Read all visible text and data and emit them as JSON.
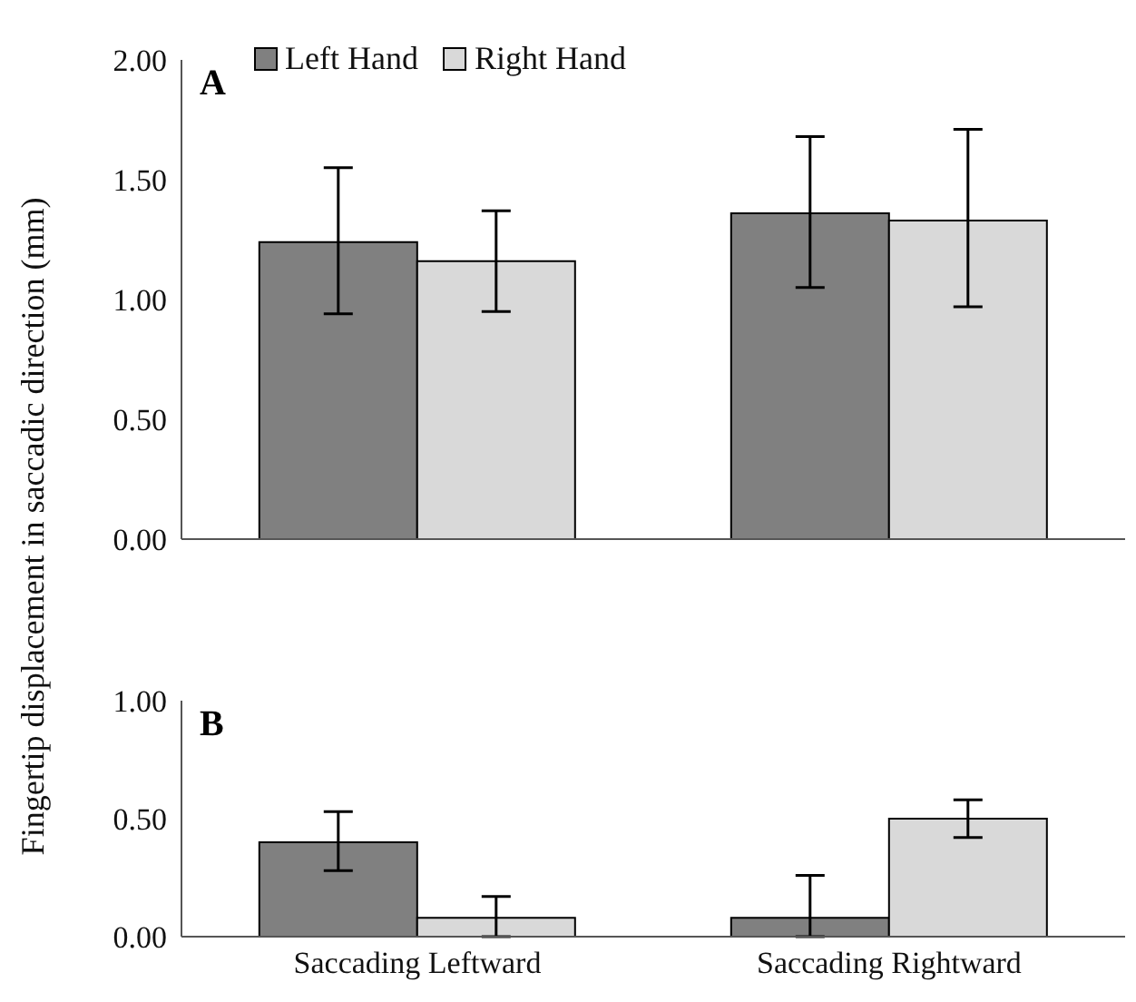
{
  "chart_data": [
    {
      "type": "bar",
      "ylabel": "Fingertip displacement in saccadic direction (mm)",
      "annotations": [
        "A"
      ],
      "categories": [
        null,
        null
      ],
      "tick_labels": "y",
      "legend": "top left",
      "grid": false,
      "series": [
        {
          "name": "Left Hand",
          "color": "#808080",
          "values": [
            1.24,
            1.36
          ],
          "errors": [
            [
              0.94,
              1.55
            ],
            [
              1.05,
              1.68
            ]
          ]
        },
        {
          "name": "Right Hand",
          "color": "#d9d9d9",
          "values": [
            1.16,
            1.33
          ],
          "errors": [
            [
              0.95,
              1.37
            ],
            [
              0.97,
              1.71
            ]
          ]
        }
      ],
      "ylim": [
        0,
        2
      ],
      "yticks": [
        {
          "value": 0,
          "label": "0.00"
        },
        {
          "value": 0.5,
          "label": "0.50"
        },
        {
          "value": 1,
          "label": "1.00"
        },
        {
          "value": 1.5,
          "label": "1.50"
        },
        {
          "value": 2,
          "label": "2.00"
        }
      ]
    },
    {
      "type": "bar",
      "annotations": [
        "B"
      ],
      "categories": [
        "Saccading Leftward",
        "Saccading Rightward"
      ],
      "grid": false,
      "series": [
        {
          "color": "#808080",
          "values": [
            0.4,
            0.08
          ],
          "errors": [
            [
              0.28,
              0.53
            ],
            [
              0,
              0.26
            ]
          ]
        },
        {
          "color": "#d9d9d9",
          "values": [
            0.08,
            0.5
          ],
          "errors": [
            [
              0,
              0.17
            ],
            [
              0.42,
              0.58
            ]
          ]
        }
      ],
      "ylim": [
        0,
        1
      ],
      "yticks": [
        {
          "value": 0,
          "label": "0.00"
        },
        {
          "value": 0.5,
          "label": "0.50"
        },
        {
          "value": 1,
          "label": "1.00"
        }
      ]
    }
  ]
}
